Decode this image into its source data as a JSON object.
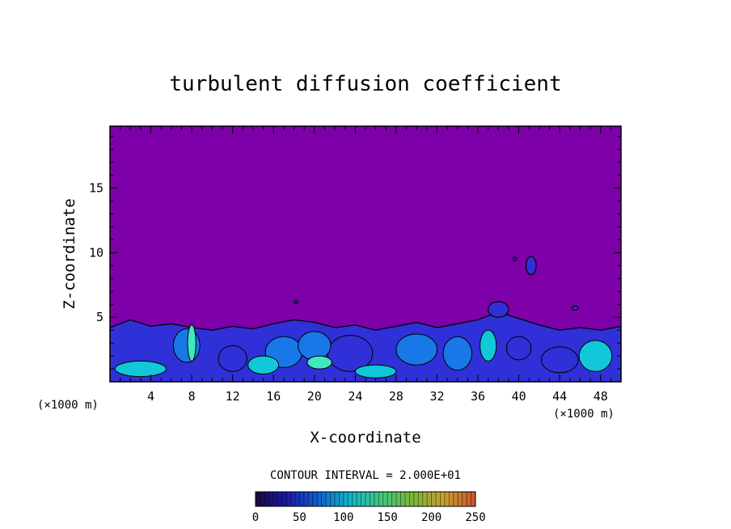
{
  "chart_data": {
    "type": "heatmap",
    "title": "turbulent diffusion coefficient",
    "xlabel": "X-coordinate",
    "ylabel": "Z-coordinate",
    "x_unit_left": "(×1000 m)",
    "x_unit_right": "(×1000 m)",
    "xlim": [
      0,
      50
    ],
    "ylim": [
      0,
      19.8
    ],
    "x_ticks": [
      4,
      8,
      12,
      16,
      20,
      24,
      28,
      32,
      36,
      40,
      44,
      48
    ],
    "y_ticks": [
      5,
      10,
      15
    ],
    "grid": false,
    "background_value": 0,
    "contour_interval_text": "CONTOUR INTERVAL = 2.000E+01",
    "colorbar": {
      "min": 0,
      "max": 250,
      "ticks": [
        0,
        50,
        100,
        150,
        200,
        250
      ],
      "stops": [
        "#1a0a3a",
        "#1a1aa8",
        "#1060d0",
        "#10b8c8",
        "#40c880",
        "#7ab838",
        "#c8a030",
        "#d05030"
      ]
    },
    "colors": {
      "background": "#7d00a8",
      "low": "#3030d8",
      "mid": "#1878e8",
      "high": "#10c8d8",
      "peak": "#40e8c0",
      "contour": "#000000"
    },
    "turbulent_layer_top": [
      [
        0,
        4.2
      ],
      [
        2,
        4.8
      ],
      [
        4,
        4.3
      ],
      [
        6,
        4.5
      ],
      [
        8,
        4.2
      ],
      [
        10,
        4.0
      ],
      [
        12,
        4.3
      ],
      [
        14,
        4.1
      ],
      [
        16,
        4.5
      ],
      [
        18,
        4.8
      ],
      [
        20,
        4.6
      ],
      [
        22,
        4.2
      ],
      [
        24,
        4.4
      ],
      [
        26,
        4.0
      ],
      [
        28,
        4.3
      ],
      [
        30,
        4.6
      ],
      [
        32,
        4.2
      ],
      [
        34,
        4.5
      ],
      [
        36,
        4.8
      ],
      [
        38,
        5.4
      ],
      [
        40,
        4.9
      ],
      [
        42,
        4.4
      ],
      [
        44,
        4.0
      ],
      [
        46,
        4.2
      ],
      [
        48,
        4.0
      ],
      [
        50,
        4.3
      ]
    ],
    "patches": [
      {
        "x": 12,
        "z": 1.8,
        "rx": 1.4,
        "rz": 1.0,
        "value": 20
      },
      {
        "x": 23.5,
        "z": 2.2,
        "rx": 2.2,
        "rz": 1.4,
        "value": 20
      },
      {
        "x": 44,
        "z": 1.7,
        "rx": 1.8,
        "rz": 1.0,
        "value": 20
      },
      {
        "x": 40,
        "z": 2.6,
        "rx": 1.2,
        "rz": 0.9,
        "value": 20
      },
      {
        "x": 17,
        "z": 2.3,
        "rx": 1.8,
        "rz": 1.2,
        "value": 60
      },
      {
        "x": 20,
        "z": 2.8,
        "rx": 1.6,
        "rz": 1.1,
        "value": 60
      },
      {
        "x": 30,
        "z": 2.5,
        "rx": 2.0,
        "rz": 1.2,
        "value": 60
      },
      {
        "x": 34,
        "z": 2.2,
        "rx": 1.4,
        "rz": 1.3,
        "value": 60
      },
      {
        "x": 7.5,
        "z": 2.8,
        "rx": 1.3,
        "rz": 1.3,
        "value": 60
      },
      {
        "x": 3,
        "z": 1.0,
        "rx": 2.5,
        "rz": 0.6,
        "value": 110
      },
      {
        "x": 15,
        "z": 1.3,
        "rx": 1.5,
        "rz": 0.7,
        "value": 110
      },
      {
        "x": 26,
        "z": 0.8,
        "rx": 2.0,
        "rz": 0.5,
        "value": 110
      },
      {
        "x": 37,
        "z": 2.8,
        "rx": 0.8,
        "rz": 1.2,
        "value": 110
      },
      {
        "x": 47.5,
        "z": 2.0,
        "rx": 1.6,
        "rz": 1.2,
        "value": 110
      },
      {
        "x": 20.5,
        "z": 1.5,
        "rx": 1.2,
        "rz": 0.5,
        "value": 160
      },
      {
        "x": 8,
        "z": 3.0,
        "rx": 0.4,
        "rz": 1.4,
        "value": 160
      }
    ],
    "isolated_features": [
      {
        "x": 41.2,
        "z": 9.0,
        "rx": 0.5,
        "rz": 0.7,
        "value": 20
      },
      {
        "x": 39.6,
        "z": 9.5,
        "rx": 0.15,
        "rz": 0.15,
        "value": 20
      },
      {
        "x": 38.0,
        "z": 5.6,
        "rx": 1.0,
        "rz": 0.6,
        "value": 20
      },
      {
        "x": 18.2,
        "z": 6.2,
        "rx": 0.2,
        "rz": 0.12,
        "value": 20
      },
      {
        "x": 45.5,
        "z": 5.7,
        "rx": 0.3,
        "rz": 0.15,
        "value": 20
      }
    ]
  }
}
